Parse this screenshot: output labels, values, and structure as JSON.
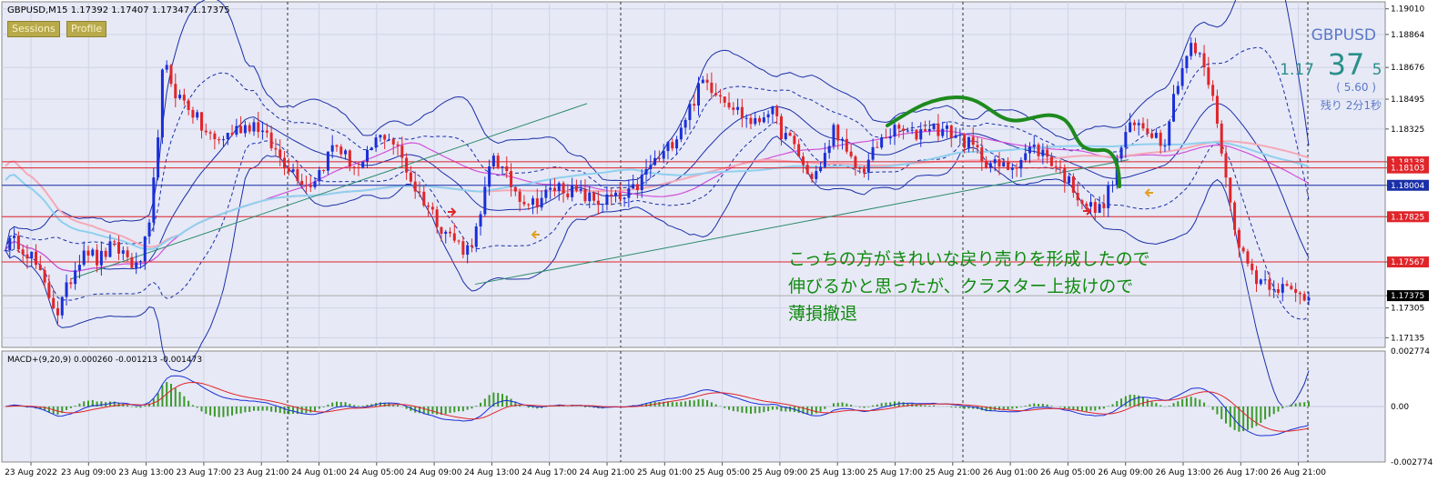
{
  "header": {
    "title": "GBPUSD,M15  1.17392 1.17407 1.17347 1.17375",
    "buttons": [
      "Sessions",
      "Profile"
    ]
  },
  "ticker": {
    "symbol": "GBPUSD",
    "price_prefix": "1.17",
    "price_big": "37",
    "price_small": "5",
    "change": "( 5.60 )",
    "remaining": "残り 2分1秒"
  },
  "annotation": {
    "lines": [
      "こっちの方がきれいな戻り売りを形成したので",
      "伸びるかと思ったが、クラスター上抜けので",
      "薄損撤退"
    ]
  },
  "macd": {
    "label": "MACD+(9,20,9) 0.000260 -0.001213 -0.001473",
    "ticks": [
      "0.002774",
      "0.00",
      "-0.002774"
    ],
    "ylim": [
      -0.002774,
      0.002774
    ]
  },
  "chart_data": {
    "type": "line",
    "title": "GBPUSD,M15",
    "ylim": [
      1.1708,
      1.1905
    ],
    "y_ticks": [
      "1.19010",
      "1.18864",
      "1.18676",
      "1.18495",
      "1.18325",
      "1.18138",
      "1.18103",
      "1.18004",
      "1.17825",
      "1.17567",
      "1.17375",
      "1.17305",
      "1.17135"
    ],
    "price_levels": [
      {
        "label": "1.18138",
        "value": 1.18138,
        "color": "#e0252a"
      },
      {
        "label": "1.18103",
        "value": 1.18103,
        "color": "#e0252a"
      },
      {
        "label": "1.18004",
        "value": 1.18004,
        "color": "#1a2fa8"
      },
      {
        "label": "1.17825",
        "value": 1.17825,
        "color": "#e0252a"
      },
      {
        "label": "1.17567",
        "value": 1.17567,
        "color": "#e0252a"
      },
      {
        "label": "1.17375",
        "value": 1.17375,
        "color": "#000000"
      }
    ],
    "x_labels": [
      "23 Aug 2022",
      "23 Aug 09:00",
      "23 Aug 13:00",
      "23 Aug 17:00",
      "23 Aug 21:00",
      "24 Aug 01:00",
      "24 Aug 05:00",
      "24 Aug 09:00",
      "24 Aug 13:00",
      "24 Aug 17:00",
      "24 Aug 21:00",
      "25 Aug 01:00",
      "25 Aug 05:00",
      "25 Aug 09:00",
      "25 Aug 13:00",
      "25 Aug 17:00",
      "25 Aug 21:00",
      "26 Aug 01:00",
      "26 Aug 05:00",
      "26 Aug 09:00",
      "26 Aug 13:00",
      "26 Aug 17:00",
      "26 Aug 21:00"
    ],
    "close_path": [
      [
        0,
        1.1767
      ],
      [
        1,
        1.1768
      ],
      [
        2,
        1.176
      ],
      [
        3,
        1.1742
      ],
      [
        4,
        1.1728
      ],
      [
        5,
        1.1748
      ],
      [
        6,
        1.1766
      ],
      [
        7,
        1.1757
      ],
      [
        8,
        1.1765
      ],
      [
        9,
        1.1762
      ],
      [
        10,
        1.1752
      ],
      [
        11,
        1.1777
      ],
      [
        12,
        1.187
      ],
      [
        13,
        1.1852
      ],
      [
        14,
        1.1845
      ],
      [
        15,
        1.1832
      ],
      [
        16,
        1.1825
      ],
      [
        17,
        1.183
      ],
      [
        18,
        1.1834
      ],
      [
        19,
        1.1836
      ],
      [
        20,
        1.1825
      ],
      [
        21,
        1.1815
      ],
      [
        22,
        1.1808
      ],
      [
        23,
        1.18
      ],
      [
        24,
        1.181
      ],
      [
        25,
        1.1825
      ],
      [
        26,
        1.1815
      ],
      [
        27,
        1.1808
      ],
      [
        28,
        1.1825
      ],
      [
        29,
        1.183
      ],
      [
        30,
        1.1818
      ],
      [
        31,
        1.18
      ],
      [
        32,
        1.179
      ],
      [
        33,
        1.1778
      ],
      [
        34,
        1.177
      ],
      [
        35,
        1.1763
      ],
      [
        36,
        1.1778
      ],
      [
        37,
        1.182
      ],
      [
        38,
        1.1805
      ],
      [
        39,
        1.1795
      ],
      [
        40,
        1.179
      ],
      [
        41,
        1.1795
      ],
      [
        42,
        1.18
      ],
      [
        43,
        1.1797
      ],
      [
        44,
        1.1794
      ],
      [
        45,
        1.1791
      ],
      [
        46,
        1.1793
      ],
      [
        47,
        1.1792
      ],
      [
        48,
        1.18
      ],
      [
        49,
        1.1812
      ],
      [
        50,
        1.1818
      ],
      [
        51,
        1.183
      ],
      [
        52,
        1.1845
      ],
      [
        53,
        1.186
      ],
      [
        54,
        1.1855
      ],
      [
        55,
        1.1848
      ],
      [
        56,
        1.184
      ],
      [
        57,
        1.1835
      ],
      [
        58,
        1.1845
      ],
      [
        59,
        1.183
      ],
      [
        60,
        1.1822
      ],
      [
        61,
        1.1805
      ],
      [
        62,
        1.181
      ],
      [
        63,
        1.1835
      ],
      [
        64,
        1.1815
      ],
      [
        65,
        1.1808
      ],
      [
        66,
        1.182
      ],
      [
        67,
        1.183
      ],
      [
        68,
        1.1832
      ],
      [
        69,
        1.1828
      ],
      [
        70,
        1.1835
      ],
      [
        71,
        1.1832
      ],
      [
        72,
        1.183
      ],
      [
        73,
        1.1825
      ],
      [
        74,
        1.1818
      ],
      [
        75,
        1.1812
      ],
      [
        76,
        1.181
      ],
      [
        77,
        1.1815
      ],
      [
        78,
        1.1822
      ],
      [
        79,
        1.1818
      ],
      [
        80,
        1.181
      ],
      [
        81,
        1.18
      ],
      [
        82,
        1.179
      ],
      [
        83,
        1.1785
      ],
      [
        84,
        1.18
      ],
      [
        85,
        1.183
      ],
      [
        86,
        1.1835
      ],
      [
        87,
        1.1832
      ],
      [
        88,
        1.1825
      ],
      [
        89,
        1.186
      ],
      [
        90,
        1.188
      ],
      [
        91,
        1.187
      ],
      [
        92,
        1.184
      ],
      [
        93,
        1.179
      ],
      [
        94,
        1.176
      ],
      [
        95,
        1.1748
      ],
      [
        96,
        1.1745
      ],
      [
        97,
        1.1742
      ],
      [
        98,
        1.1738
      ],
      [
        99,
        1.1737
      ]
    ]
  }
}
